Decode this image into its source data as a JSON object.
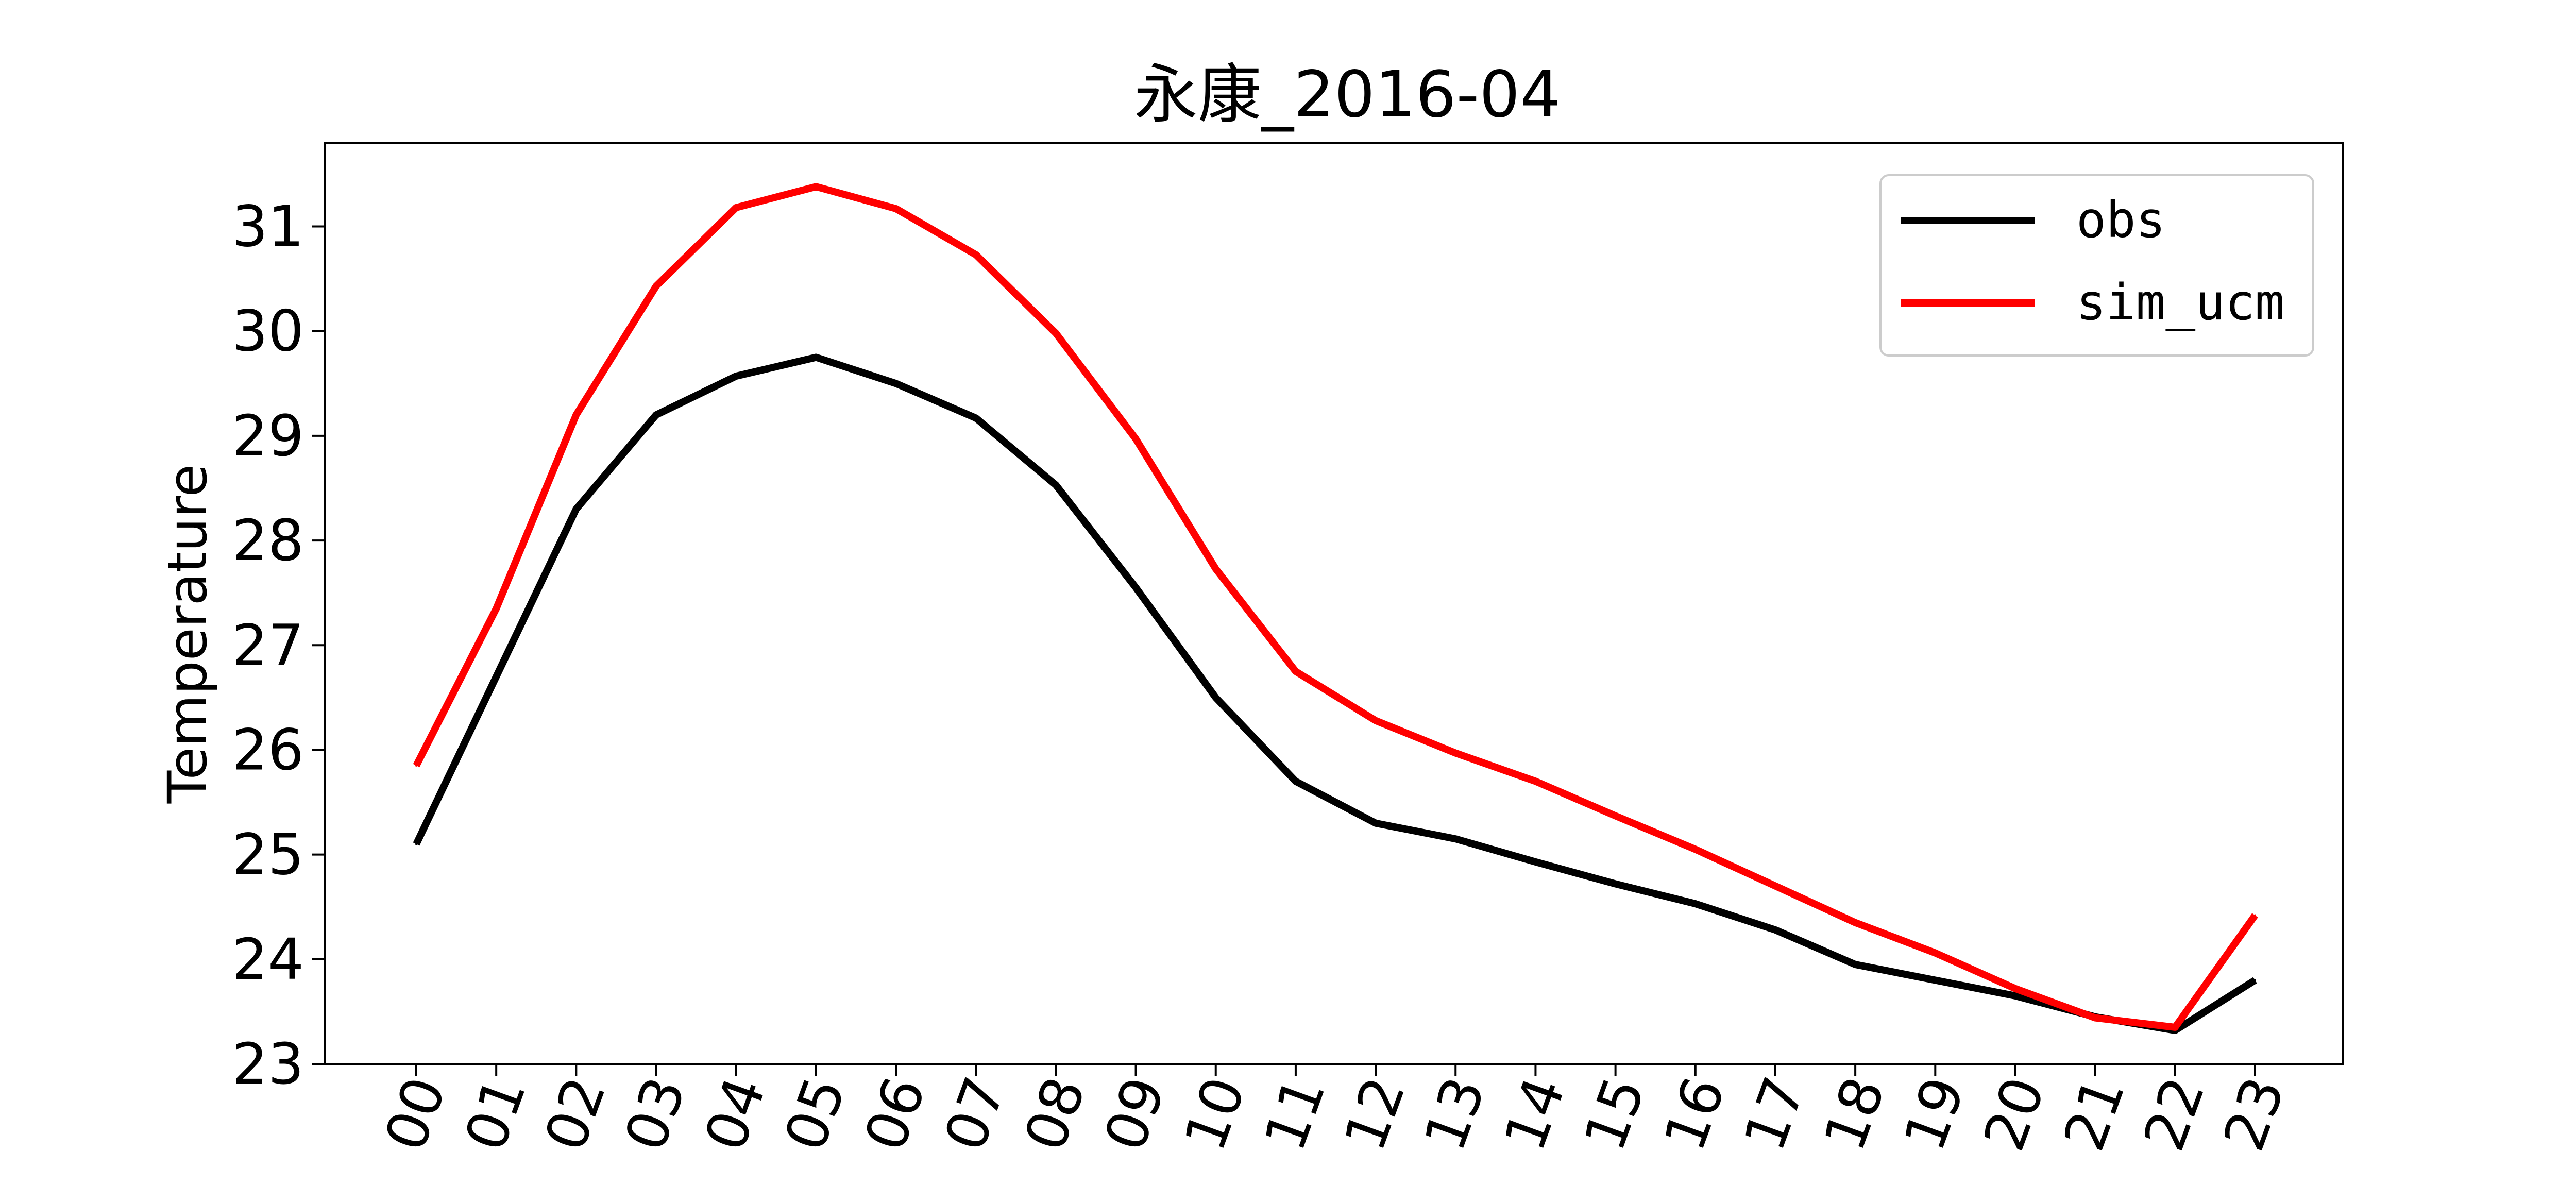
{
  "chart_data": {
    "type": "line",
    "title": "永康_2016-04",
    "xlabel": "",
    "ylabel": "Temperature",
    "categories": [
      "00",
      "01",
      "02",
      "03",
      "04",
      "05",
      "06",
      "07",
      "08",
      "09",
      "10",
      "11",
      "12",
      "13",
      "14",
      "15",
      "16",
      "17",
      "18",
      "19",
      "20",
      "21",
      "22",
      "23"
    ],
    "ylim": [
      23,
      31.8
    ],
    "yticks": [
      23,
      24,
      25,
      26,
      27,
      28,
      29,
      30,
      31
    ],
    "grid": false,
    "legend_position": "top-right",
    "series": [
      {
        "name": "obs",
        "color": "#000000",
        "values": [
          25.1,
          26.7,
          28.3,
          29.2,
          29.57,
          29.75,
          29.5,
          29.17,
          28.53,
          27.55,
          26.5,
          25.7,
          25.3,
          25.15,
          24.93,
          24.72,
          24.53,
          24.28,
          23.95,
          23.8,
          23.65,
          23.45,
          23.32,
          23.8
        ]
      },
      {
        "name": "sim_ucm",
        "color": "#ff0000",
        "values": [
          25.85,
          27.35,
          29.2,
          30.43,
          31.18,
          31.38,
          31.17,
          30.73,
          29.98,
          28.97,
          27.73,
          26.75,
          26.28,
          25.97,
          25.7,
          25.37,
          25.05,
          24.7,
          24.35,
          24.06,
          23.72,
          23.44,
          23.35,
          24.42
        ]
      }
    ]
  }
}
